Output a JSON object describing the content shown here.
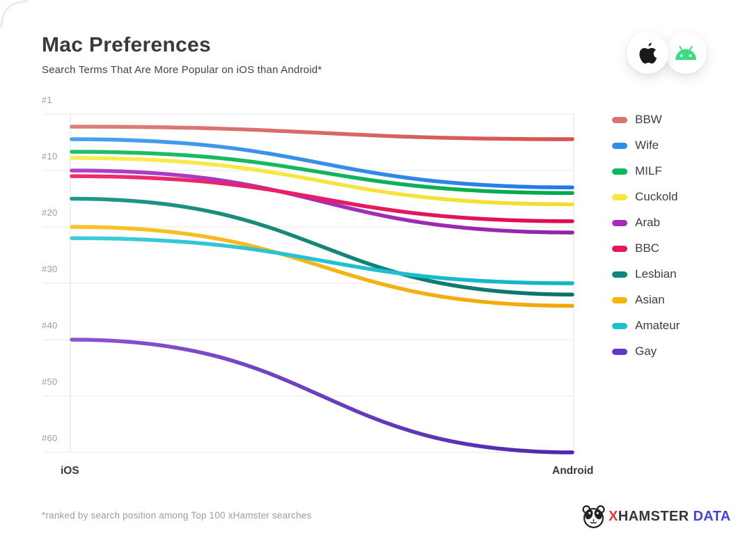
{
  "header": {
    "title": "Mac Preferences",
    "subtitle": "Search Terms That Are More Popular on iOS than Android*"
  },
  "platform_badges": {
    "apple_icon_color": "#1a1a1a",
    "android_icon_color": "#3ddc84"
  },
  "chart_data": {
    "type": "line",
    "variant": "bump-slope-chart with sigmoid curves, inverted rank axis (#1 best at top)",
    "title": "Mac Preferences",
    "subtitle": "Search Terms That Are More Popular on iOS than Android*",
    "x_categories": [
      "iOS",
      "Android"
    ],
    "y_axis": {
      "unit": "search rank",
      "ticks": [
        1,
        10,
        20,
        30,
        40,
        50,
        60
      ],
      "tick_labels": [
        "#1",
        "#10",
        "#20",
        "#30",
        "#40",
        "#50",
        "#60"
      ],
      "tick_spacing": "even pixel spacing between labeled ticks",
      "range": [
        1,
        60
      ],
      "inverted": true,
      "grid": "horizontal light gray lines at each tick"
    },
    "legend_position": "right",
    "series": [
      {
        "name": "BBW",
        "color": "#db7470",
        "color_start": "#dc807c",
        "color_end": "#d5524e",
        "values": [
          3,
          5
        ]
      },
      {
        "name": "Wife",
        "color": "#2e8feb",
        "color_start": "#49a2ee",
        "color_end": "#2379e8",
        "values": [
          5,
          13
        ]
      },
      {
        "name": "MILF",
        "color": "#0cb85c",
        "color_start": "#21c069",
        "color_end": "#04a84e",
        "values": [
          7,
          14
        ]
      },
      {
        "name": "Cuckold",
        "color": "#f5e73c",
        "color_start": "#f8ee55",
        "color_end": "#f4dc2a",
        "values": [
          8,
          16
        ]
      },
      {
        "name": "Arab",
        "color": "#a22cbe",
        "color_start": "#b43ec8",
        "color_end": "#8e24aa",
        "values": [
          10,
          21
        ]
      },
      {
        "name": "BBC",
        "color": "#ea1560",
        "color_start": "#ef2e72",
        "color_end": "#e00b55",
        "values": [
          11,
          19
        ]
      },
      {
        "name": "Lesbian",
        "color": "#108779",
        "color_start": "#1e998b",
        "color_end": "#0b7267",
        "values": [
          15,
          32
        ]
      },
      {
        "name": "Asian",
        "color": "#f6b40e",
        "color_start": "#f8c42c",
        "color_end": "#f3a602",
        "values": [
          20,
          34
        ]
      },
      {
        "name": "Amateur",
        "color": "#1fc1d2",
        "color_start": "#3ecddb",
        "color_end": "#0cb4c8",
        "values": [
          22,
          30
        ]
      },
      {
        "name": "Gay",
        "color": "#6236c9",
        "color_start": "#8a55cf",
        "color_end": "#4b28ad",
        "values": [
          40,
          60
        ]
      }
    ]
  },
  "footer": {
    "note": "*ranked by search position among Top 100 xHamster searches",
    "logo": {
      "x": "X",
      "hamster": "HAMSTER",
      "data": "DATA",
      "x_color": "#e53935",
      "hamster_color": "#33373c",
      "data_color": "#4542d7"
    }
  }
}
